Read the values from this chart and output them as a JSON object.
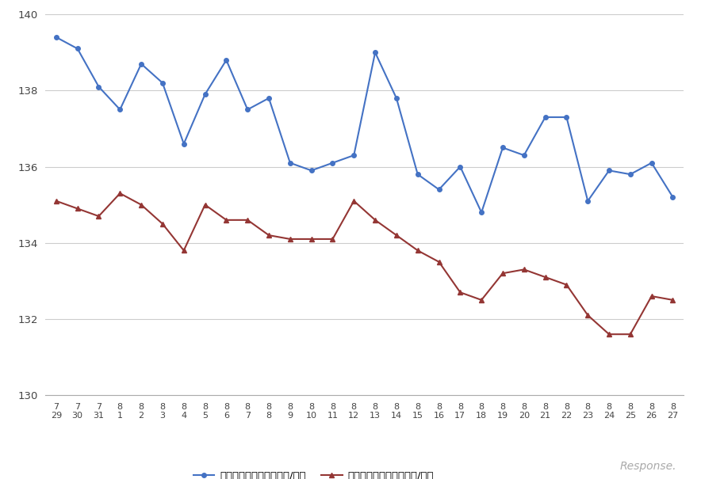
{
  "x_labels_line1": [
    "7",
    "7",
    "7",
    "8",
    "8",
    "8",
    "8",
    "8",
    "8",
    "8",
    "8",
    "8",
    "8",
    "8",
    "8",
    "8",
    "8",
    "8",
    "8",
    "8",
    "8",
    "8",
    "8",
    "8",
    "8",
    "8",
    "8",
    "8",
    "8",
    "8"
  ],
  "x_labels_line2": [
    "29",
    "30",
    "31",
    "1",
    "2",
    "3",
    "4",
    "5",
    "6",
    "7",
    "8",
    "9",
    "10",
    "11",
    "12",
    "13",
    "14",
    "15",
    "16",
    "17",
    "18",
    "19",
    "20",
    "21",
    "22",
    "23",
    "24",
    "25",
    "26",
    "27"
  ],
  "blue_values": [
    139.4,
    139.1,
    138.1,
    137.5,
    138.7,
    138.2,
    136.6,
    137.9,
    138.8,
    137.5,
    137.8,
    136.1,
    135.9,
    136.1,
    136.3,
    139.0,
    137.8,
    135.8,
    135.4,
    136.0,
    134.8,
    136.5,
    136.3,
    137.3,
    137.3,
    135.1,
    135.9,
    135.8,
    136.1,
    135.2
  ],
  "red_values": [
    135.1,
    134.9,
    134.7,
    135.3,
    135.0,
    134.5,
    133.8,
    135.0,
    134.6,
    134.6,
    134.2,
    134.1,
    134.1,
    134.1,
    135.1,
    134.6,
    134.2,
    133.8,
    133.5,
    132.7,
    132.5,
    133.2,
    133.3,
    133.1,
    132.9,
    132.1,
    131.6,
    131.6,
    132.6,
    132.5
  ],
  "ylim": [
    130,
    140
  ],
  "yticks": [
    130,
    132,
    134,
    136,
    138,
    140
  ],
  "blue_color": "#4472C4",
  "red_color": "#943634",
  "blue_label": "レギュラー看板価格（円/リ）",
  "red_label": "レギュラー実売価格（円/リ）",
  "background_color": "#ffffff",
  "grid_color": "#cccccc"
}
